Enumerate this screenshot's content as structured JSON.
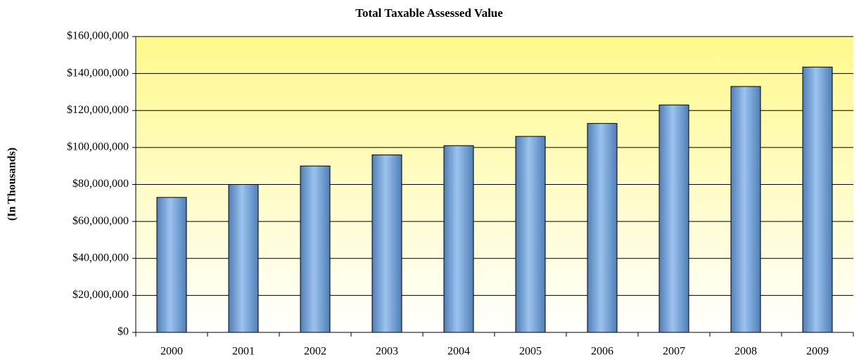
{
  "chart_data": {
    "type": "bar",
    "title": "Total Taxable Assessed Value",
    "y_label": "(In Thousands)",
    "categories": [
      "2000",
      "2001",
      "2002",
      "2003",
      "2004",
      "2005",
      "2006",
      "2007",
      "2008",
      "2009"
    ],
    "values": [
      73000000,
      80000000,
      90000000,
      96000000,
      101000000,
      106000000,
      113000000,
      123000000,
      133000000,
      143500000
    ],
    "color": "#9dc3ef",
    "ylim": [
      0,
      160000000
    ],
    "yticks": [
      {
        "value": 0,
        "label": "$0"
      },
      {
        "value": 20000000,
        "label": "$20,000,000"
      },
      {
        "value": 40000000,
        "label": "$40,000,000"
      },
      {
        "value": 60000000,
        "label": "$60,000,000"
      },
      {
        "value": 80000000,
        "label": "$80,000,000"
      },
      {
        "value": 100000000,
        "label": "$100,000,000"
      },
      {
        "value": 120000000,
        "label": "$120,000,000"
      },
      {
        "value": 140000000,
        "label": "$140,000,000"
      },
      {
        "value": 160000000,
        "label": "$160,000,000"
      }
    ],
    "grid": true
  }
}
